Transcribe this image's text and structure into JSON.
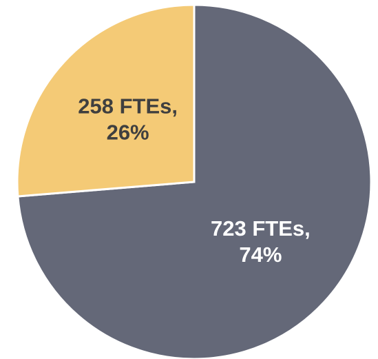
{
  "chart_data": {
    "type": "pie",
    "categories": [
      null,
      null
    ],
    "values": [
      723,
      258
    ],
    "value_labels": [
      [
        "723 FTEs,",
        "74%"
      ],
      [
        "258 FTEs,",
        "26%"
      ]
    ],
    "colors": [
      "#646878",
      "#f4ca76"
    ]
  }
}
